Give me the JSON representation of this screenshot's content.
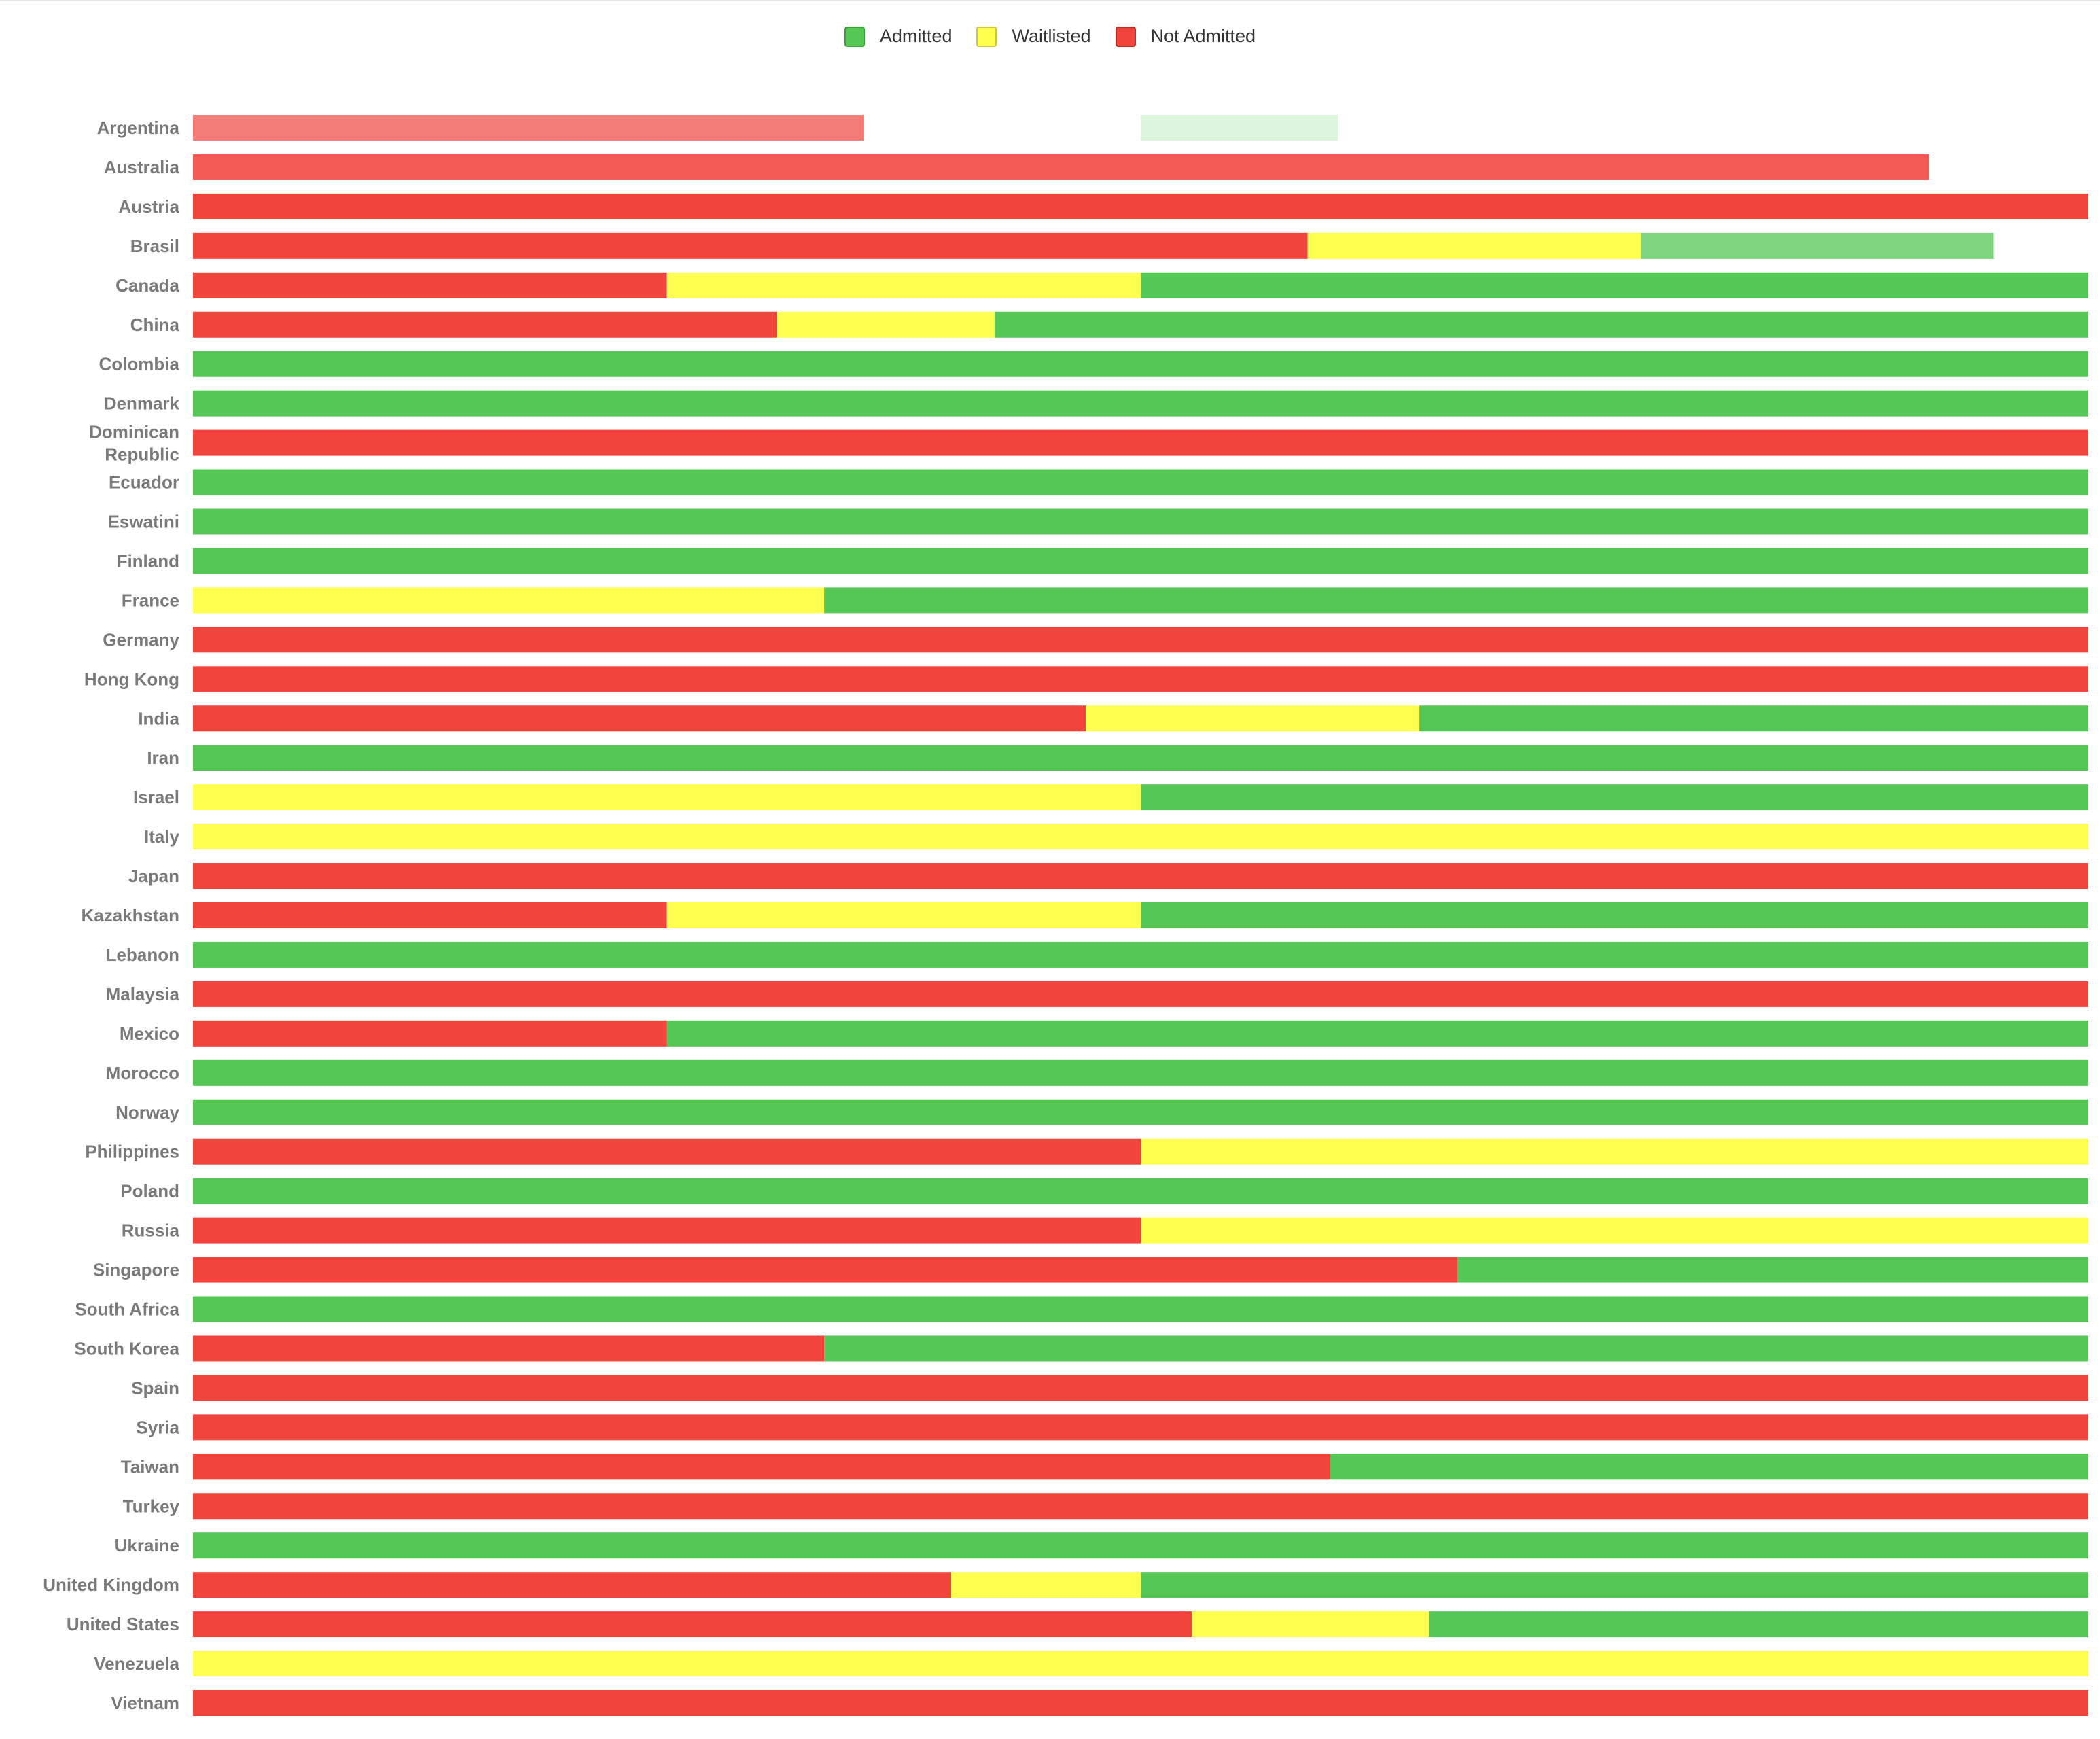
{
  "legend": {
    "items": [
      {
        "label": "Admitted",
        "color": "#55c755",
        "border": "#3a9e3a"
      },
      {
        "label": "Waitlisted",
        "color": "#ffff4f",
        "border": "#c9c93a"
      },
      {
        "label": "Not Admitted",
        "color": "#f0443c",
        "border": "#b7302a"
      }
    ]
  },
  "chart_data": {
    "type": "bar",
    "orientation": "horizontal",
    "stacked": true,
    "title": "",
    "xlabel": "",
    "ylabel": "",
    "xlim": [
      0,
      100
    ],
    "grid": false,
    "legend_position": "top-center",
    "categories": [
      "Argentina",
      "Australia",
      "Austria",
      "Brasil",
      "Canada",
      "China",
      "Colombia",
      "Denmark",
      "Dominican Republic",
      "Ecuador",
      "Eswatini",
      "Finland",
      "France",
      "Germany",
      "Hong Kong",
      "India",
      "Iran",
      "Israel",
      "Italy",
      "Japan",
      "Kazakhstan",
      "Lebanon",
      "Malaysia",
      "Mexico",
      "Morocco",
      "Norway",
      "Philippines",
      "Poland",
      "Russia",
      "Singapore",
      "South Africa",
      "South Korea",
      "Spain",
      "Syria",
      "Taiwan",
      "Turkey",
      "Ukraine",
      "United Kingdom",
      "United States",
      "Venezuela",
      "Vietnam"
    ],
    "series": [
      {
        "name": "Not Admitted",
        "color": "#f0443c",
        "values": [
          35.4,
          91.6,
          100,
          58.8,
          25,
          30.8,
          0,
          0,
          100,
          0,
          0,
          0,
          0,
          100,
          100,
          47.1,
          0,
          0,
          0,
          100,
          25,
          0,
          100,
          25,
          0,
          0,
          50,
          0,
          50,
          66.7,
          0,
          33.3,
          100,
          100,
          60,
          100,
          0,
          40,
          52.7,
          0,
          100
        ]
      },
      {
        "name": "Waitlisted",
        "color": "#ffff4f",
        "values": [
          0,
          0,
          0,
          17.6,
          25,
          11.5,
          0,
          0,
          0,
          0,
          0,
          0,
          33.3,
          0,
          0,
          17.6,
          0,
          50,
          100,
          0,
          25,
          0,
          0,
          0,
          0,
          0,
          50,
          0,
          50,
          0,
          0,
          0,
          0,
          0,
          0,
          0,
          0,
          10,
          12.5,
          100,
          0
        ]
      },
      {
        "name": "Admitted",
        "color": "#55c755",
        "values": [
          10.4,
          0,
          0,
          18.6,
          50,
          57.7,
          100,
          100,
          0,
          100,
          100,
          100,
          66.7,
          0,
          0,
          35.3,
          100,
          50,
          0,
          0,
          50,
          100,
          0,
          75,
          100,
          100,
          0,
          100,
          0,
          33.3,
          100,
          66.7,
          0,
          0,
          40,
          0,
          100,
          50,
          34.8,
          0,
          0
        ]
      }
    ],
    "fades": {
      "Argentina": {
        "Not Admitted": 0.7,
        "Waitlisted": 1,
        "Admitted": 0.2
      },
      "Australia": {
        "Not Admitted": 0.88,
        "Waitlisted": 1,
        "Admitted": 1
      },
      "Brasil": {
        "Not Admitted": 1,
        "Waitlisted": 1,
        "Admitted": 0.75
      }
    },
    "gaps": {
      "Argentina": {
        "before_Admitted": 14.6
      }
    }
  }
}
